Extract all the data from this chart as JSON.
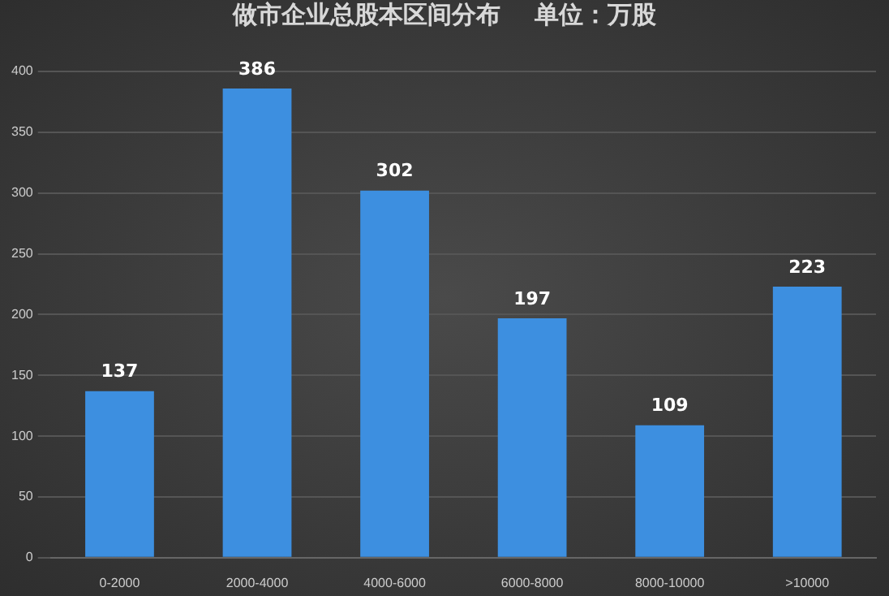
{
  "chart_data": {
    "type": "bar",
    "title": "做市企业总股本区间分布    单位：万股",
    "categories": [
      "0-2000",
      "2000-4000",
      "4000-6000",
      "6000-8000",
      "8000-10000",
      ">10000"
    ],
    "values": [
      137,
      386,
      302,
      197,
      109,
      223
    ],
    "color": "#3d8fe0",
    "ylim": [
      0,
      400
    ],
    "yticks": [
      0,
      50,
      100,
      150,
      200,
      250,
      300,
      350,
      400
    ],
    "grid": "y",
    "data_labels": true
  }
}
